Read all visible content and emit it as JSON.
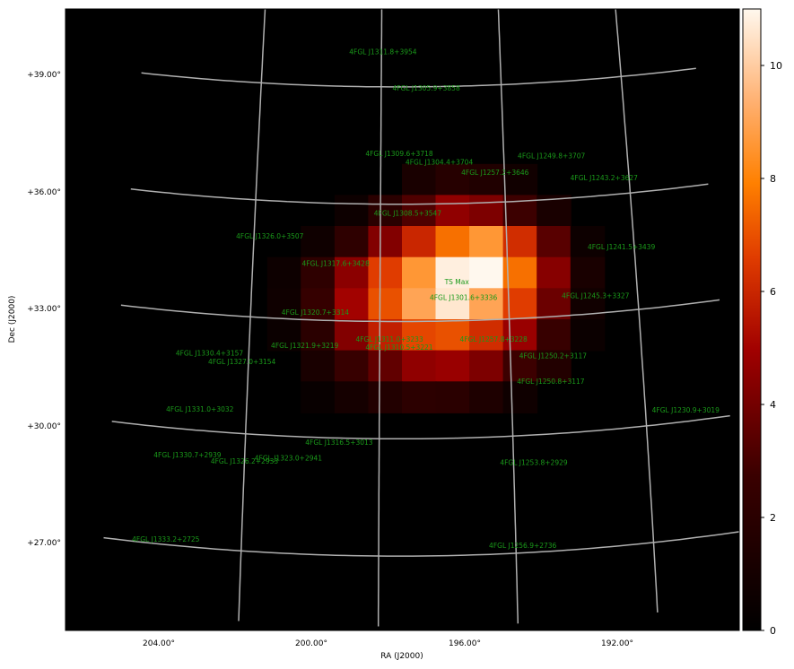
{
  "chart_data": {
    "type": "heatmap",
    "xlabel": "RA (J2000)",
    "ylabel": "Dec (J2000)",
    "x_ticks": [
      "204.00°",
      "200.00°",
      "196.00°",
      "192.00°"
    ],
    "y_ticks": [
      "+39.00°",
      "+36.00°",
      "+33.00°",
      "+30.00°",
      "+27.00°"
    ],
    "colorbar": {
      "min": 0,
      "max": 11,
      "ticks": [
        "0",
        "2",
        "4",
        "6",
        "8",
        "10"
      ],
      "colormap": "gist_heat"
    },
    "ts_grid": [
      [
        0,
        0,
        0,
        0,
        0,
        0,
        0,
        0,
        0,
        0,
        0,
        0,
        0,
        0,
        0,
        0,
        0,
        0,
        0,
        0
      ],
      [
        0,
        0,
        0,
        0,
        0,
        0,
        0,
        0,
        0,
        0,
        0,
        0,
        0,
        0,
        0,
        0,
        0,
        0,
        0,
        0
      ],
      [
        0,
        0,
        0,
        0,
        0,
        0,
        0,
        0,
        0,
        0,
        0,
        0,
        0,
        0,
        0,
        0,
        0,
        0,
        0,
        0
      ],
      [
        0,
        0,
        0,
        0,
        0,
        0,
        0,
        0,
        0,
        0,
        0,
        0,
        0,
        0,
        0,
        0,
        0,
        0,
        0,
        0
      ],
      [
        0,
        0,
        0,
        0,
        0,
        0,
        0,
        0,
        0,
        0,
        0,
        0,
        0,
        0,
        0,
        0,
        0,
        0,
        0,
        0
      ],
      [
        0,
        0,
        0,
        0,
        0,
        0,
        0,
        0,
        0,
        0,
        1.2,
        1.8,
        1.5,
        0.8,
        0,
        0,
        0,
        0,
        0,
        0
      ],
      [
        0,
        0,
        0,
        0,
        0,
        0,
        0,
        0,
        0.6,
        2.0,
        3.2,
        4.6,
        4.2,
        2.8,
        1.2,
        0,
        0,
        0,
        0,
        0
      ],
      [
        0,
        0,
        0,
        0,
        0,
        0,
        0,
        0.7,
        2.2,
        4.3,
        6.0,
        7.6,
        8.6,
        6.2,
        3.4,
        0.6,
        0,
        0,
        0,
        0
      ],
      [
        0,
        0,
        0,
        0,
        0,
        0,
        0.6,
        2.2,
        4.5,
        6.6,
        8.6,
        10.8,
        11.0,
        7.6,
        4.4,
        1.2,
        0,
        0,
        0,
        0
      ],
      [
        0,
        0,
        0,
        0,
        0,
        0,
        0.7,
        2.5,
        5.0,
        7.0,
        9.0,
        10.6,
        9.0,
        6.6,
        3.8,
        0.8,
        0,
        0,
        0,
        0
      ],
      [
        0,
        0,
        0,
        0,
        0,
        0,
        0.5,
        2.0,
        4.3,
        5.8,
        6.8,
        7.0,
        6.2,
        4.8,
        2.6,
        0.5,
        0,
        0,
        0,
        0
      ],
      [
        0,
        0,
        0,
        0,
        0,
        0,
        0,
        1.2,
        2.6,
        3.6,
        4.6,
        4.8,
        4.2,
        2.8,
        1.6,
        0,
        0,
        0,
        0,
        0
      ],
      [
        0,
        0,
        0,
        0,
        0,
        0,
        0,
        0.4,
        1.0,
        1.6,
        2.1,
        2.0,
        1.4,
        0.7,
        0,
        0,
        0,
        0,
        0,
        0
      ],
      [
        0,
        0,
        0,
        0,
        0,
        0,
        0,
        0,
        0,
        0,
        0,
        0,
        0,
        0,
        0,
        0,
        0,
        0,
        0,
        0
      ],
      [
        0,
        0,
        0,
        0,
        0,
        0,
        0,
        0,
        0,
        0,
        0,
        0,
        0,
        0,
        0,
        0,
        0,
        0,
        0,
        0
      ],
      [
        0,
        0,
        0,
        0,
        0,
        0,
        0,
        0,
        0,
        0,
        0,
        0,
        0,
        0,
        0,
        0,
        0,
        0,
        0,
        0
      ],
      [
        0,
        0,
        0,
        0,
        0,
        0,
        0,
        0,
        0,
        0,
        0,
        0,
        0,
        0,
        0,
        0,
        0,
        0,
        0,
        0
      ],
      [
        0,
        0,
        0,
        0,
        0,
        0,
        0,
        0,
        0,
        0,
        0,
        0,
        0,
        0,
        0,
        0,
        0,
        0,
        0,
        0
      ],
      [
        0,
        0,
        0,
        0,
        0,
        0,
        0,
        0,
        0,
        0,
        0,
        0,
        0,
        0,
        0,
        0,
        0,
        0,
        0,
        0
      ],
      [
        0,
        0,
        0,
        0,
        0,
        0,
        0,
        0,
        0,
        0,
        0,
        0,
        0,
        0,
        0,
        0,
        0,
        0,
        0,
        0
      ]
    ],
    "annotations": [
      {
        "label": "4FGL J1311.8+3954",
        "ra": 197.95,
        "dec": 39.9
      },
      {
        "label": "4FGL J1305.9+3858",
        "ra": 196.5,
        "dec": 38.97
      },
      {
        "label": "4FGL J1309.6+3718",
        "ra": 197.4,
        "dec": 37.3
      },
      {
        "label": "4FGL J1304.4+3704",
        "ra": 196.1,
        "dec": 37.07
      },
      {
        "label": "4FGL J1249.8+3707",
        "ra": 192.45,
        "dec": 37.12
      },
      {
        "label": "4FGL J1257.2+3646",
        "ra": 194.3,
        "dec": 36.77
      },
      {
        "label": "4FGL J1243.2+3627",
        "ra": 190.8,
        "dec": 36.45
      },
      {
        "label": "4FGL J1308.5+3547",
        "ra": 197.13,
        "dec": 35.78
      },
      {
        "label": "4FGL J1326.0+3507",
        "ra": 201.5,
        "dec": 35.1
      },
      {
        "label": "4FGL J1241.5+3439",
        "ra": 190.4,
        "dec": 34.65
      },
      {
        "label": "4FGL J1317.6+3428",
        "ra": 199.4,
        "dec": 34.47
      },
      {
        "label": "TS Max",
        "ra": 195.6,
        "dec": 34.0
      },
      {
        "label": "4FGL J1301.6+3336",
        "ra": 195.4,
        "dec": 33.6
      },
      {
        "label": "4FGL J1245.3+3327",
        "ra": 191.3,
        "dec": 33.46
      },
      {
        "label": "4FGL J1320.7+3314",
        "ra": 200.0,
        "dec": 33.2
      },
      {
        "label": "4FGL J1311.0+3233",
        "ra": 197.7,
        "dec": 32.55
      },
      {
        "label": "4FGL J1321.9+3219",
        "ra": 200.3,
        "dec": 32.35
      },
      {
        "label": "4FGL J1310.5+3221",
        "ra": 197.4,
        "dec": 32.35
      },
      {
        "label": "4FGL J1257.8+3228",
        "ra": 194.5,
        "dec": 32.5
      },
      {
        "label": "4FGL J1330.4+3157",
        "ra": 203.2,
        "dec": 32.0
      },
      {
        "label": "4FGL J1327.0+3154",
        "ra": 202.2,
        "dec": 31.85
      },
      {
        "label": "4FGL J1250.2+3117",
        "ra": 192.7,
        "dec": 32.0
      },
      {
        "label": "4FGL J1250.8+3117",
        "ra": 192.8,
        "dec": 31.35
      },
      {
        "label": "4FGL J1331.0+3032",
        "ra": 203.4,
        "dec": 30.55
      },
      {
        "label": "4FGL J1230.9+3019",
        "ra": 188.8,
        "dec": 30.3
      },
      {
        "label": "4FGL J1316.5+3013",
        "ra": 199.2,
        "dec": 29.9
      },
      {
        "label": "4FGL J1330.7+2939",
        "ra": 203.7,
        "dec": 29.35
      },
      {
        "label": "4FGL J1323.0+2941",
        "ra": 200.7,
        "dec": 29.45
      },
      {
        "label": "4FGL J1326.2+2933",
        "ra": 202.0,
        "dec": 29.3
      },
      {
        "label": "4FGL J1253.8+2929",
        "ra": 193.4,
        "dec": 29.3
      },
      {
        "label": "4FGL J1333.2+2725",
        "ra": 204.2,
        "dec": 27.15
      },
      {
        "label": "4FGL J1256.9+2736",
        "ra": 193.8,
        "dec": 27.2
      }
    ]
  }
}
